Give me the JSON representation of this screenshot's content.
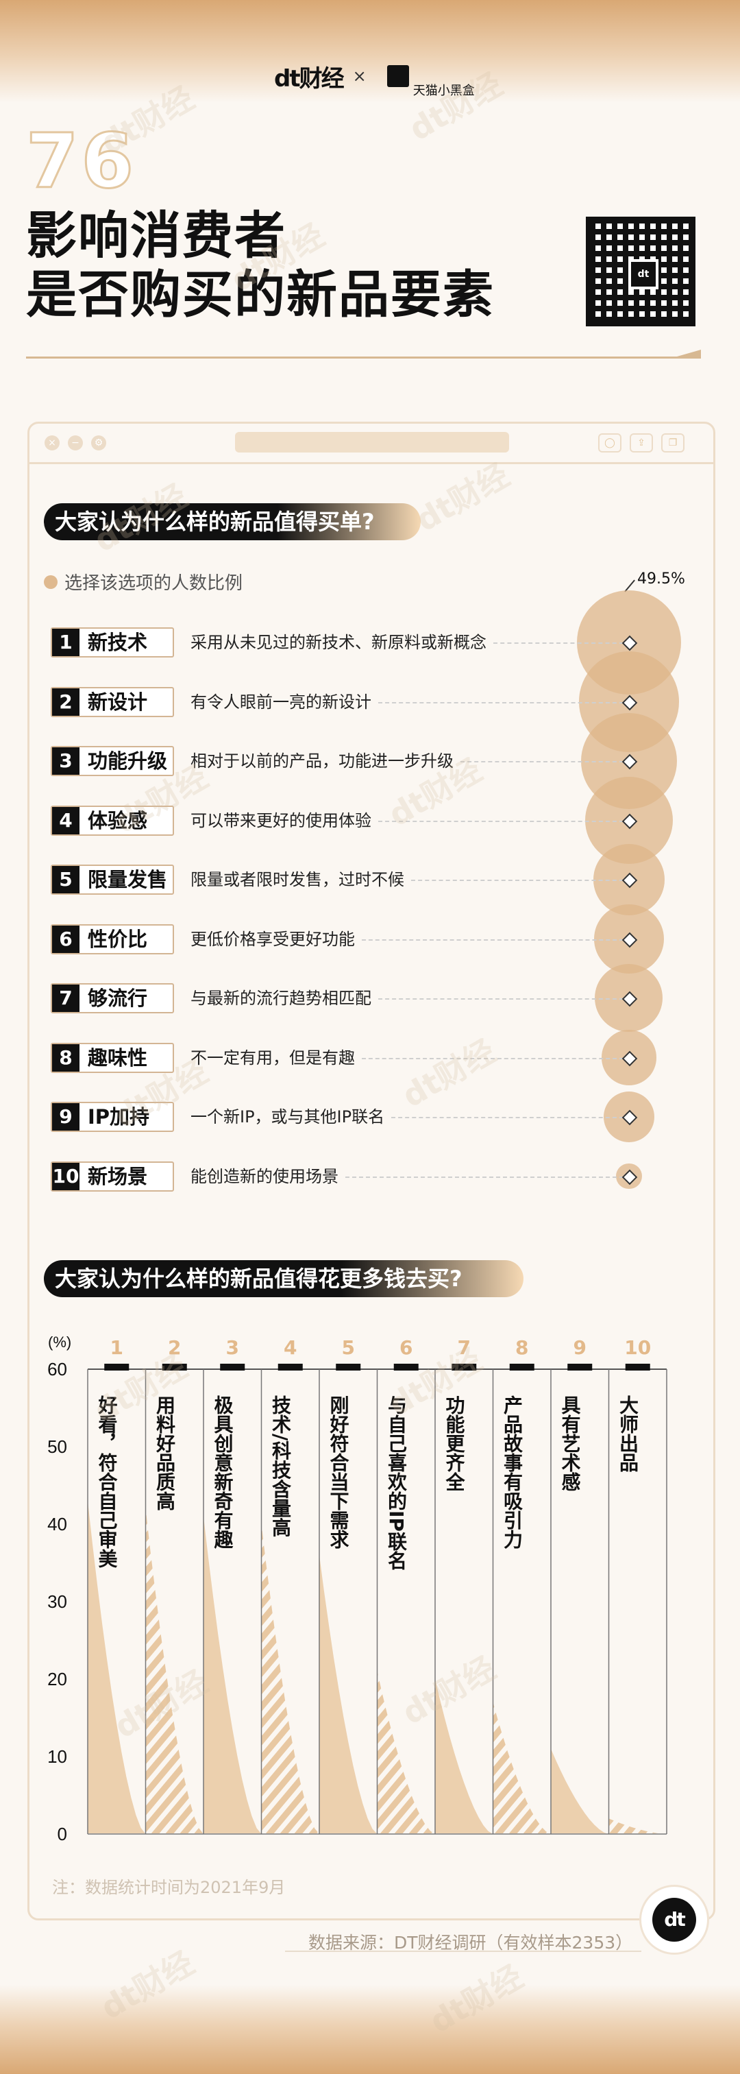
{
  "header": {
    "brand_left": "dt财经",
    "times": "×",
    "brand_right": "天猫小黑盒",
    "issue_no": "76",
    "title_line1": "影响消费者",
    "title_line2": "是否购买的新品要素"
  },
  "colors": {
    "accent": "#dfb98f",
    "dark": "#111111",
    "bg": "#fbf7f2"
  },
  "section1": {
    "heading": "大家认为什么样的新品值得买单?",
    "legend": "选择该选项的人数比例",
    "top_value_label": "49.5%"
  },
  "section2": {
    "heading": "大家认为什么样的新品值得花更多钱去买?"
  },
  "chart_data": [
    {
      "type": "bubble",
      "title": "大家认为什么样的新品值得买单?",
      "legend": "选择该选项的人数比例",
      "items": [
        {
          "rank": "1",
          "label": "新技术",
          "desc": "采用从未见过的新技术、新原料或新概念",
          "value": 49.5
        },
        {
          "rank": "2",
          "label": "新设计",
          "desc": "有令人眼前一亮的新设计",
          "value": 46
        },
        {
          "rank": "3",
          "label": "功能升级",
          "desc": "相对于以前的产品，功能进一步升级",
          "value": 42
        },
        {
          "rank": "4",
          "label": "体验感",
          "desc": "可以带来更好的使用体验",
          "value": 35
        },
        {
          "rank": "5",
          "label": "限量发售",
          "desc": "限量或者限时发售，过时不候",
          "value": 23
        },
        {
          "rank": "6",
          "label": "性价比",
          "desc": "更低价格享受更好功能",
          "value": 22
        },
        {
          "rank": "7",
          "label": "够流行",
          "desc": "与最新的流行趋势相匹配",
          "value": 21
        },
        {
          "rank": "8",
          "label": "趣味性",
          "desc": "不一定有用，但是有趣",
          "value": 14
        },
        {
          "rank": "9",
          "label": "IP加持",
          "desc": "一个新IP，或与其他IP联名",
          "value": 12
        },
        {
          "rank": "10",
          "label": "新场景",
          "desc": "能创造新的使用场景",
          "value": 3
        }
      ]
    },
    {
      "type": "area",
      "title": "大家认为什么样的新品值得花更多钱去买?",
      "ylabel": "(%)",
      "ylim": [
        0,
        60
      ],
      "yticks": [
        "0",
        "10",
        "20",
        "30",
        "40",
        "50",
        "60"
      ],
      "categories": [
        {
          "rank": "1",
          "label": "好看，符合自己审美",
          "value": 43
        },
        {
          "rank": "2",
          "label": "用料好品质高",
          "value": 42
        },
        {
          "rank": "3",
          "label": "极具创意新奇有趣",
          "value": 41
        },
        {
          "rank": "4",
          "label": "技术/科技含量高",
          "value": 40
        },
        {
          "rank": "5",
          "label": "刚好符合当下需求",
          "value": 36
        },
        {
          "rank": "6",
          "label": "与自己喜欢的IP联名",
          "value": 21
        },
        {
          "rank": "7",
          "label": "功能更齐全",
          "value": 20
        },
        {
          "rank": "8",
          "label": "产品故事有吸引力",
          "value": 17
        },
        {
          "rank": "9",
          "label": "具有艺术感",
          "value": 11
        },
        {
          "rank": "10",
          "label": "大师出品",
          "value": 2
        }
      ]
    }
  ],
  "footer": {
    "note": "注：数据统计时间为2021年9月",
    "source": "数据来源：DT财经调研（有效样本2353）",
    "logo": "dt"
  }
}
